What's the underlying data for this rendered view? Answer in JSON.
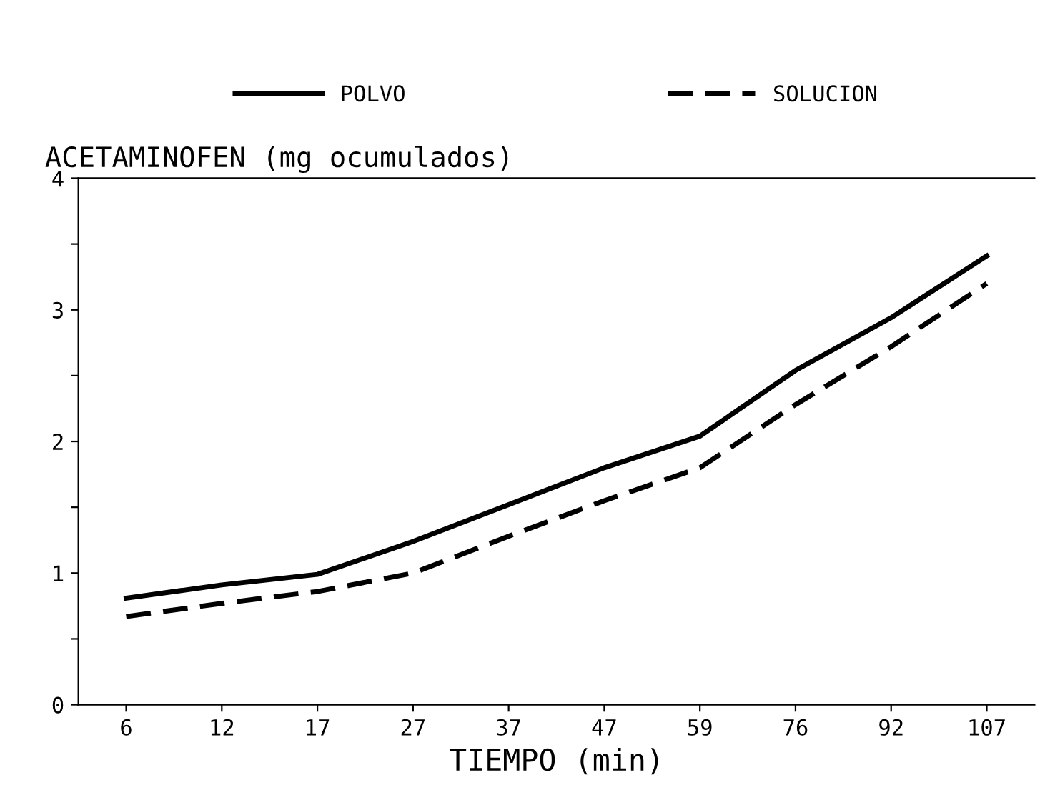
{
  "chart_data": {
    "type": "line",
    "ylabel": "ACETAMINOFEN (mg ocumulados)",
    "xlabel": "TIEMPO (min)",
    "categories": [
      "6",
      "12",
      "17",
      "27",
      "37",
      "47",
      "59",
      "76",
      "92",
      "107"
    ],
    "series": [
      {
        "name": "POLVO",
        "color": "#000000",
        "line_style": "solid",
        "values": [
          0.81,
          0.91,
          0.99,
          1.24,
          1.52,
          1.8,
          2.04,
          2.54,
          2.94,
          3.41
        ]
      },
      {
        "name": "SOLUCION",
        "color": "#000000",
        "line_style": "dashed",
        "values": [
          0.67,
          0.77,
          0.86,
          1.0,
          1.28,
          1.55,
          1.8,
          2.28,
          2.72,
          3.2
        ]
      }
    ],
    "ylim": [
      0,
      4
    ],
    "yticks": [
      0,
      {
        "value": 0.5,
        "label": null
      },
      1,
      {
        "value": 1.5,
        "label": null
      },
      2,
      {
        "value": 2.5,
        "label": null
      },
      3,
      {
        "value": 3.5,
        "label": null
      },
      4
    ],
    "legend": "top",
    "grid": false,
    "marker": "none"
  }
}
